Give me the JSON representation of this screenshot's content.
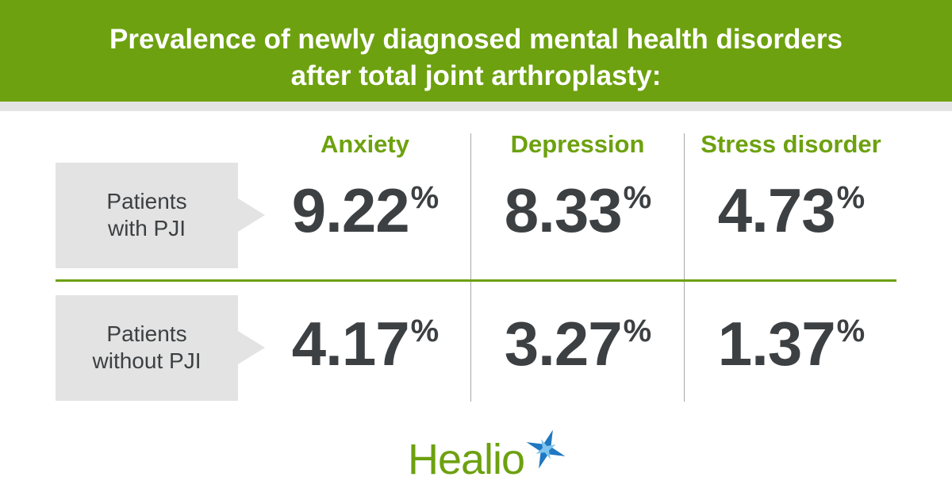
{
  "header": {
    "title_lines": [
      "Prevalence of newly diagnosed mental health disorders",
      "after total joint arthroplasty:"
    ]
  },
  "table": {
    "columns": [
      "Anxiety",
      "Depression",
      "Stress disorder"
    ],
    "rows": [
      {
        "label_lines": [
          "Patients",
          "with PJI"
        ],
        "cells": [
          {
            "number": "9.22",
            "unit": "%"
          },
          {
            "number": "8.33",
            "unit": "%"
          },
          {
            "number": "4.73",
            "unit": "%"
          }
        ]
      },
      {
        "label_lines": [
          "Patients",
          "without PJI"
        ],
        "cells": [
          {
            "number": "4.17",
            "unit": "%"
          },
          {
            "number": "3.27",
            "unit": "%"
          },
          {
            "number": "1.37",
            "unit": "%"
          }
        ]
      }
    ]
  },
  "logo": "Healio"
}
